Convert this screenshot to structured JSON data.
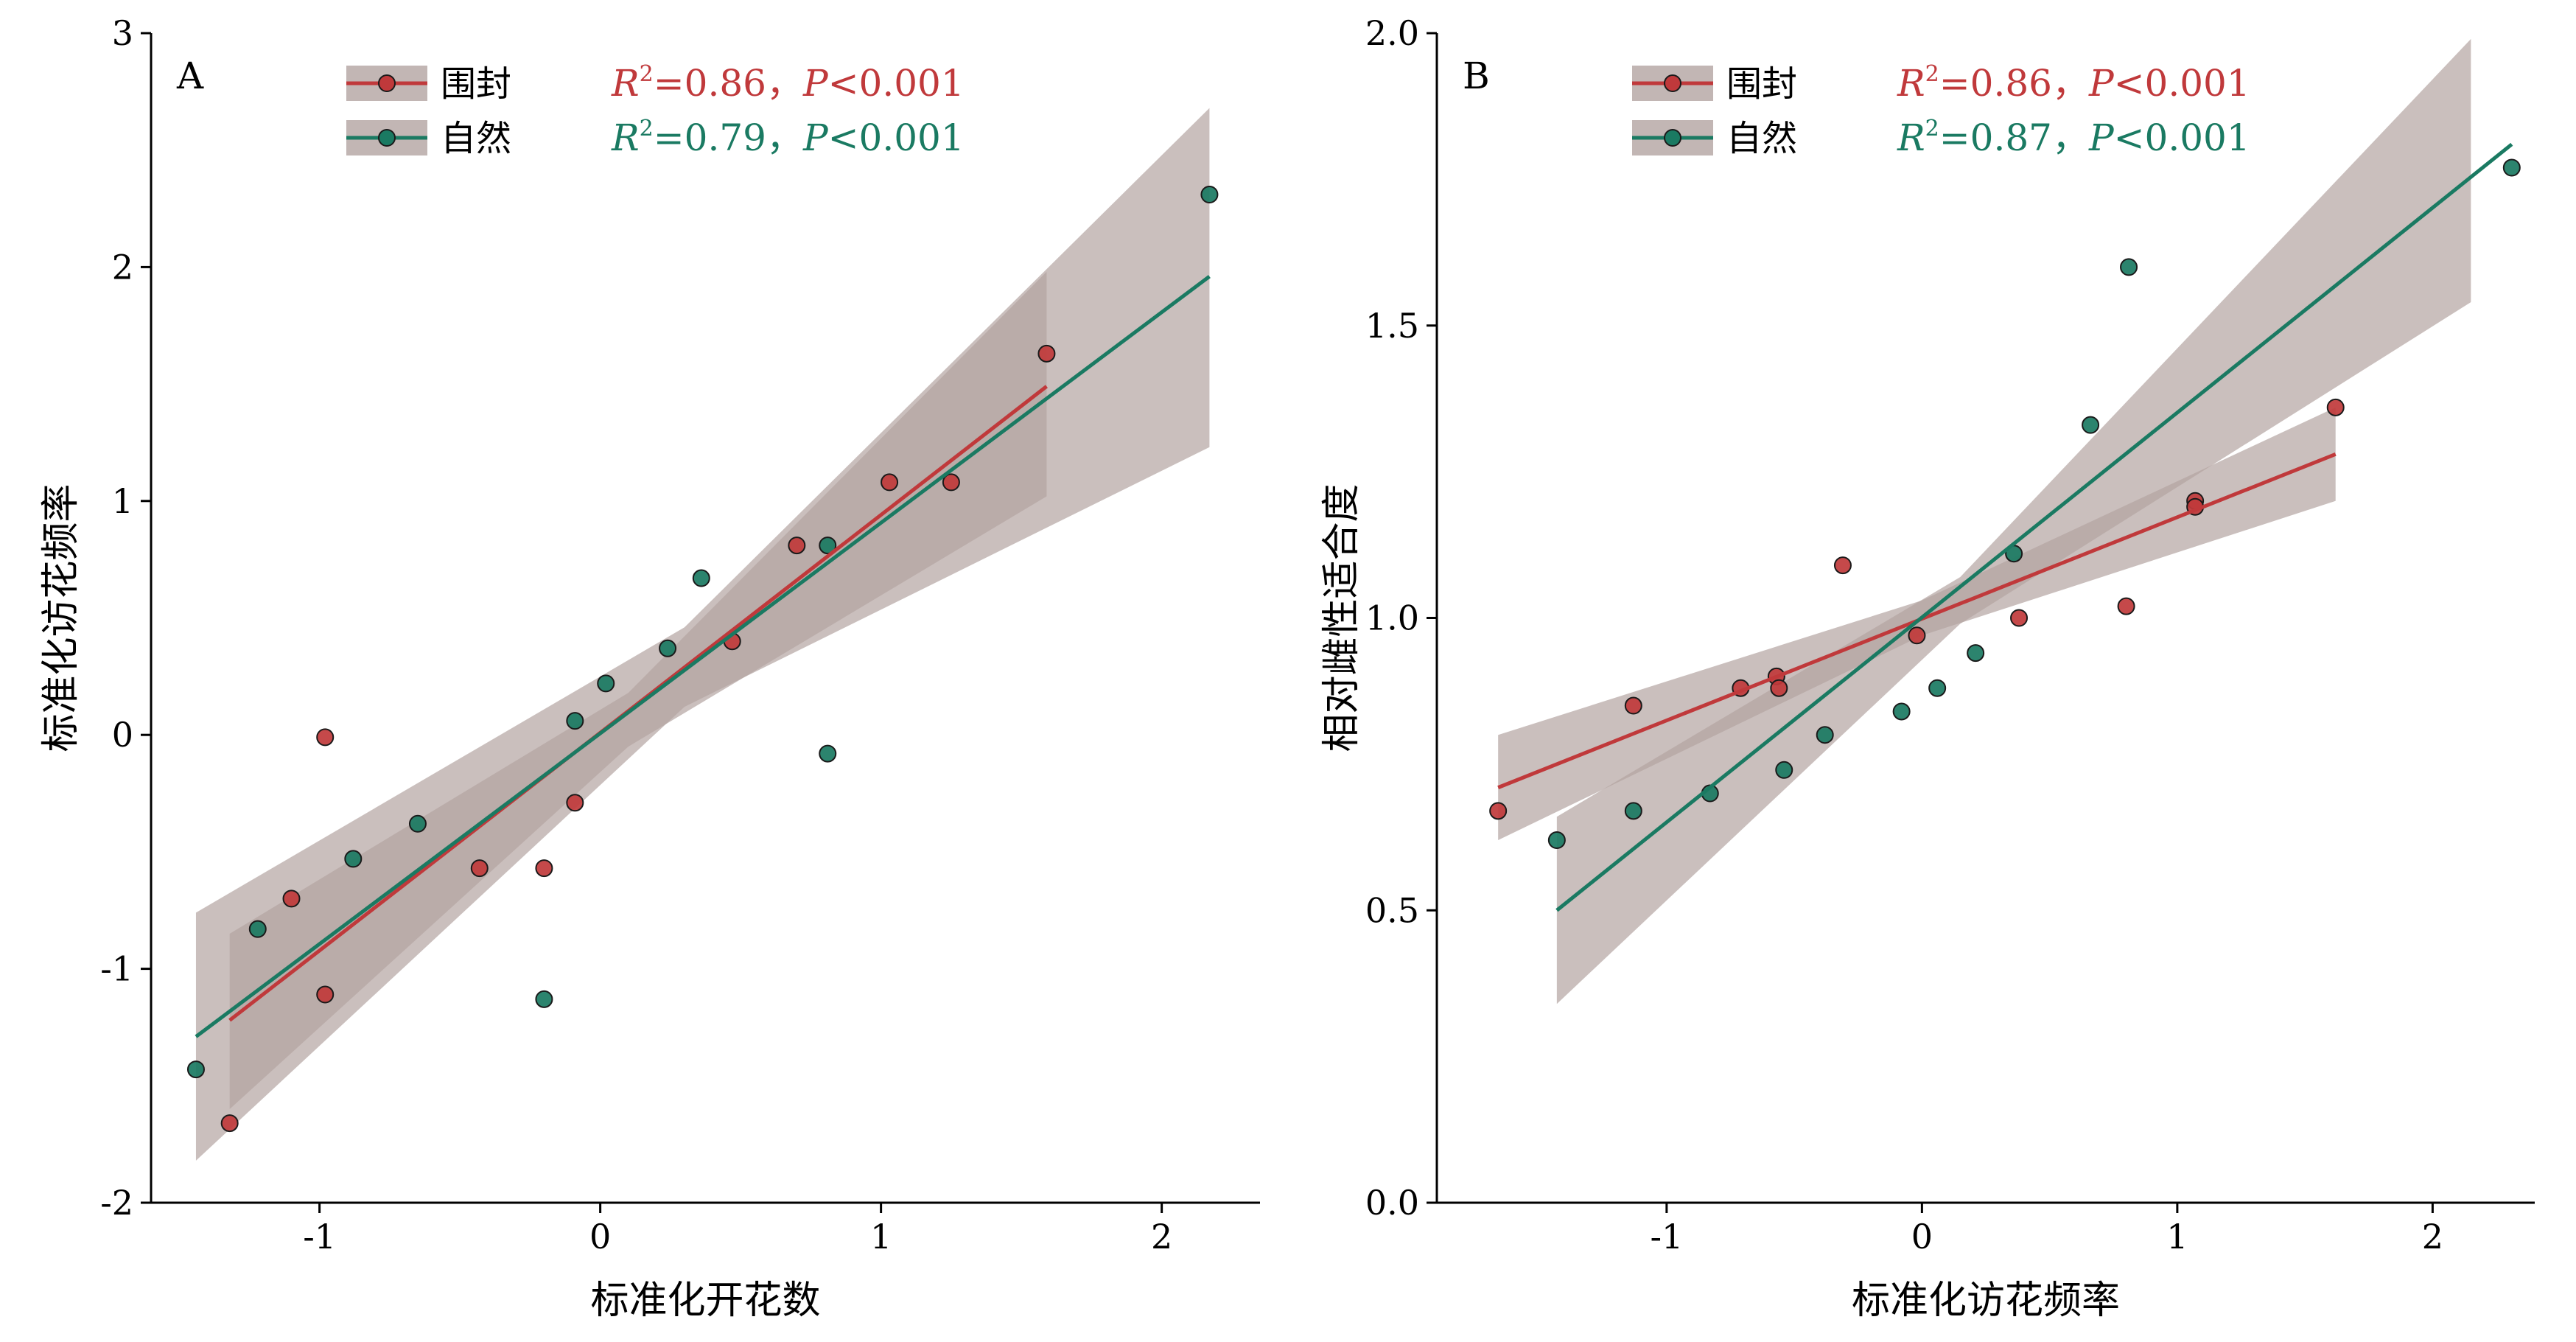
{
  "colors": {
    "fenced": "#c0393b",
    "natural": "#1a7a62",
    "ci_band": "#b3a4a1",
    "axis": "#000000"
  },
  "chart_data": [
    {
      "panel_label": "A",
      "type": "scatter",
      "xlabel": "标准化开花数",
      "ylabel": "标准化访花频率",
      "xlim": [
        -1.6,
        2.35
      ],
      "ylim": [
        -2,
        3
      ],
      "xticks": [
        {
          "v": -1,
          "label": "-1"
        },
        {
          "v": 0,
          "label": "0"
        },
        {
          "v": 1,
          "label": "1"
        },
        {
          "v": 2,
          "label": "2"
        }
      ],
      "yticks": [
        {
          "v": -2,
          "label": "-2"
        },
        {
          "v": -1,
          "label": "-1"
        },
        {
          "v": 0,
          "label": "0"
        },
        {
          "v": 1,
          "label": "1"
        },
        {
          "v": 2,
          "label": "2"
        },
        {
          "v": 3,
          "label": "3"
        }
      ],
      "legend_position": "top-left",
      "series": [
        {
          "name": "围封",
          "color_key": "fenced",
          "stat": {
            "r2": "0.86",
            "p": "0.001"
          },
          "points": [
            [
              -1.32,
              -1.66
            ],
            [
              -0.98,
              -1.11
            ],
            [
              -1.1,
              -0.7
            ],
            [
              -0.98,
              -0.01
            ],
            [
              -0.43,
              -0.57
            ],
            [
              -0.2,
              -0.57
            ],
            [
              -0.09,
              -0.29
            ],
            [
              0.47,
              0.4
            ],
            [
              0.7,
              0.81
            ],
            [
              1.03,
              1.08
            ],
            [
              1.25,
              1.08
            ],
            [
              1.59,
              1.63
            ]
          ],
          "fit": [
            [
              -1.32,
              -1.22
            ],
            [
              1.59,
              1.49
            ]
          ],
          "ci": [
            [
              -1.32,
              -0.85,
              -1.6
            ],
            [
              0.1,
              0.18,
              -0.05
            ],
            [
              1.59,
              1.98,
              1.02
            ]
          ]
        },
        {
          "name": "自然",
          "color_key": "natural",
          "stat": {
            "r2": "0.79",
            "p": "0.001"
          },
          "points": [
            [
              -1.44,
              -1.43
            ],
            [
              -1.22,
              -0.83
            ],
            [
              -0.88,
              -0.53
            ],
            [
              -0.65,
              -0.38
            ],
            [
              -0.2,
              -1.13
            ],
            [
              -0.09,
              0.06
            ],
            [
              0.02,
              0.22
            ],
            [
              0.24,
              0.37
            ],
            [
              0.36,
              0.67
            ],
            [
              0.81,
              0.81
            ],
            [
              0.81,
              -0.08
            ],
            [
              2.17,
              2.31
            ]
          ],
          "fit": [
            [
              -1.44,
              -1.29
            ],
            [
              2.17,
              1.96
            ]
          ],
          "ci": [
            [
              -1.44,
              -0.76,
              -1.82
            ],
            [
              0.3,
              0.46,
              0.12
            ],
            [
              2.17,
              2.68,
              1.23
            ]
          ]
        }
      ]
    },
    {
      "panel_label": "B",
      "type": "scatter",
      "xlabel": "标准化访花频率",
      "ylabel": "相对雌性适合度",
      "xlim": [
        -1.9,
        2.4
      ],
      "ylim": [
        0,
        2
      ],
      "xticks": [
        {
          "v": -1,
          "label": "-1"
        },
        {
          "v": 0,
          "label": "0"
        },
        {
          "v": 1,
          "label": "1"
        },
        {
          "v": 2,
          "label": "2"
        }
      ],
      "yticks": [
        {
          "v": 0,
          "label": "0.0"
        },
        {
          "v": 0.5,
          "label": "0.5"
        },
        {
          "v": 1,
          "label": "1.0"
        },
        {
          "v": 1.5,
          "label": "1.5"
        },
        {
          "v": 2,
          "label": "2.0"
        }
      ],
      "legend_position": "top-left",
      "series": [
        {
          "name": "围封",
          "color_key": "fenced",
          "stat": {
            "r2": "0.86",
            "p": "0.001"
          },
          "points": [
            [
              -1.66,
              0.67
            ],
            [
              -1.13,
              0.85
            ],
            [
              -0.71,
              0.88
            ],
            [
              -0.57,
              0.9
            ],
            [
              -0.56,
              0.88
            ],
            [
              -0.31,
              1.09
            ],
            [
              -0.02,
              0.97
            ],
            [
              0.38,
              1.0
            ],
            [
              0.8,
              1.02
            ],
            [
              1.07,
              1.2
            ],
            [
              1.07,
              1.19
            ],
            [
              1.62,
              1.36
            ]
          ],
          "fit": [
            [
              -1.66,
              0.71
            ],
            [
              1.62,
              1.28
            ]
          ],
          "ci": [
            [
              -1.66,
              0.8,
              0.62
            ],
            [
              0.0,
              1.03,
              0.97
            ],
            [
              1.62,
              1.36,
              1.2
            ]
          ]
        },
        {
          "name": "自然",
          "color_key": "natural",
          "stat": {
            "r2": "0.87",
            "p": "0.001"
          },
          "points": [
            [
              -1.43,
              0.62
            ],
            [
              -1.13,
              0.67
            ],
            [
              -0.83,
              0.7
            ],
            [
              -0.54,
              0.74
            ],
            [
              -0.38,
              0.8
            ],
            [
              -0.08,
              0.84
            ],
            [
              0.06,
              0.88
            ],
            [
              0.21,
              0.94
            ],
            [
              0.36,
              1.11
            ],
            [
              0.66,
              1.33
            ],
            [
              0.81,
              1.6
            ],
            [
              2.31,
              1.77
            ]
          ],
          "fit": [
            [
              -1.43,
              0.5
            ],
            [
              2.31,
              1.81
            ]
          ],
          "ci": [
            [
              -1.43,
              0.66,
              0.34
            ],
            [
              0.15,
              1.07,
              0.99
            ],
            [
              2.15,
              1.99,
              1.54
            ]
          ]
        }
      ]
    }
  ]
}
